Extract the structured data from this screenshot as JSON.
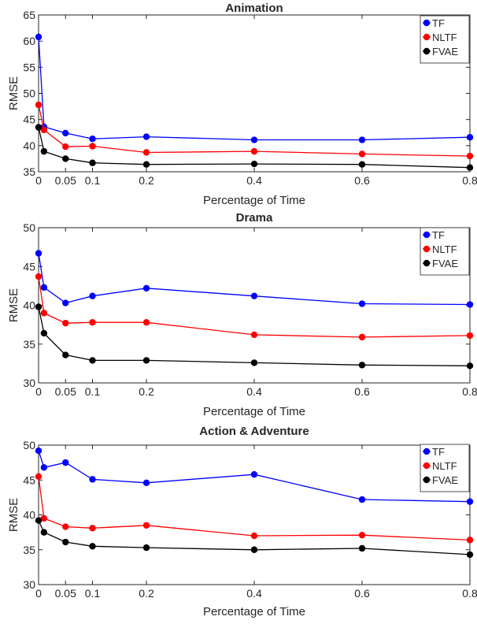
{
  "chart_data": [
    {
      "type": "line",
      "title": "Animation",
      "xlabel": "Percentage of Time",
      "ylabel": "RMSE",
      "x": [
        0,
        0.01,
        0.05,
        0.1,
        0.2,
        0.4,
        0.6,
        0.8
      ],
      "xticks": [
        0,
        0.05,
        0.1,
        0.2,
        0.4,
        0.6,
        0.8
      ],
      "xtick_labels": [
        "0",
        "0.05",
        "0.1",
        "0.2",
        "0.4",
        "0.6",
        "0.8"
      ],
      "xlim": [
        0,
        0.8
      ],
      "ylim": [
        35,
        65
      ],
      "yticks": [
        35,
        40,
        45,
        50,
        55,
        60,
        65
      ],
      "ytick_labels": [
        "35",
        "40",
        "45",
        "50",
        "55",
        "60",
        "65"
      ],
      "grid": false,
      "legend_position": "top-right",
      "series": [
        {
          "name": "TF",
          "color": "#0000ff",
          "values": [
            60.8,
            43.6,
            42.4,
            41.3,
            41.7,
            41.1,
            41.1,
            41.6
          ]
        },
        {
          "name": "NLTF",
          "color": "#ff0000",
          "values": [
            47.8,
            43.0,
            39.8,
            39.9,
            38.7,
            38.9,
            38.4,
            38.0
          ]
        },
        {
          "name": "FVAE",
          "color": "#000000",
          "values": [
            43.5,
            38.9,
            37.5,
            36.7,
            36.4,
            36.5,
            36.4,
            35.8
          ]
        }
      ]
    },
    {
      "type": "line",
      "title": "Drama",
      "xlabel": "Percentage of Time",
      "ylabel": "RMSE",
      "x": [
        0,
        0.01,
        0.05,
        0.1,
        0.2,
        0.4,
        0.6,
        0.8
      ],
      "xticks": [
        0,
        0.05,
        0.1,
        0.2,
        0.4,
        0.6,
        0.8
      ],
      "xtick_labels": [
        "0",
        "0.05",
        "0.1",
        "0.2",
        "0.4",
        "0.6",
        "0.8"
      ],
      "xlim": [
        0,
        0.8
      ],
      "ylim": [
        30,
        50
      ],
      "yticks": [
        30,
        35,
        40,
        45,
        50
      ],
      "ytick_labels": [
        "30",
        "35",
        "40",
        "45",
        "50"
      ],
      "grid": false,
      "legend_position": "top-right",
      "series": [
        {
          "name": "TF",
          "color": "#0000ff",
          "values": [
            46.7,
            42.3,
            40.3,
            41.2,
            42.2,
            41.2,
            40.2,
            40.1
          ]
        },
        {
          "name": "NLTF",
          "color": "#ff0000",
          "values": [
            43.7,
            39.0,
            37.7,
            37.8,
            37.8,
            36.2,
            35.9,
            36.1
          ]
        },
        {
          "name": "FVAE",
          "color": "#000000",
          "values": [
            39.8,
            36.4,
            33.6,
            32.9,
            32.9,
            32.6,
            32.3,
            32.2
          ]
        }
      ]
    },
    {
      "type": "line",
      "title": "Action & Adventure",
      "xlabel": "Percentage of Time",
      "ylabel": "RMSE",
      "x": [
        0,
        0.01,
        0.05,
        0.1,
        0.2,
        0.4,
        0.6,
        0.8
      ],
      "xticks": [
        0,
        0.05,
        0.1,
        0.2,
        0.4,
        0.6,
        0.8
      ],
      "xtick_labels": [
        "0",
        "0.05",
        "0.1",
        "0.2",
        "0.4",
        "0.6",
        "0.8"
      ],
      "xlim": [
        0,
        0.8
      ],
      "ylim": [
        30,
        50
      ],
      "yticks": [
        30,
        35,
        40,
        45,
        50
      ],
      "ytick_labels": [
        "30",
        "35",
        "40",
        "45",
        "50"
      ],
      "grid": false,
      "legend_position": "top-right",
      "series": [
        {
          "name": "TF",
          "color": "#0000ff",
          "values": [
            49.2,
            46.8,
            47.5,
            45.1,
            44.6,
            45.8,
            42.2,
            41.9
          ]
        },
        {
          "name": "NLTF",
          "color": "#ff0000",
          "values": [
            45.5,
            39.5,
            38.3,
            38.1,
            38.5,
            37.0,
            37.1,
            36.4
          ]
        },
        {
          "name": "FVAE",
          "color": "#000000",
          "values": [
            39.2,
            37.5,
            36.1,
            35.5,
            35.3,
            35.0,
            35.2,
            34.3
          ]
        }
      ]
    }
  ]
}
